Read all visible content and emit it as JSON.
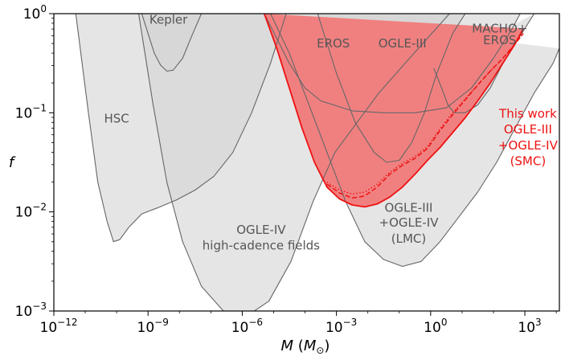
{
  "chart_data": {
    "type": "area",
    "xlabel_main": "M",
    "xlabel_unit": "M",
    "xlabel_sub": "⊙",
    "ylabel": "f",
    "xscale": "log",
    "yscale": "log",
    "xlim": [
      -12,
      4.1
    ],
    "ylim": [
      -3,
      0
    ],
    "x_ticks": [
      {
        "exp": -12,
        "label_base": "10",
        "label_exp": "−12"
      },
      {
        "exp": -9,
        "label_base": "10",
        "label_exp": "−9"
      },
      {
        "exp": -6,
        "label_base": "10",
        "label_exp": "−6"
      },
      {
        "exp": -3,
        "label_base": "10",
        "label_exp": "−3"
      },
      {
        "exp": 0,
        "label_base": "10",
        "label_exp": "0"
      },
      {
        "exp": 3,
        "label_base": "10",
        "label_exp": "3"
      }
    ],
    "y_ticks": [
      {
        "exp": -3,
        "label_base": "10",
        "label_exp": "−3"
      },
      {
        "exp": -2,
        "label_base": "10",
        "label_exp": "−2"
      },
      {
        "exp": -1,
        "label_base": "10",
        "label_exp": "−1"
      },
      {
        "exp": 0,
        "label_base": "10",
        "label_exp": "0"
      }
    ],
    "colors": {
      "gray_fill": "#d3d3d3",
      "gray_line": "#666666",
      "label_gray": "#555555",
      "red_fill": "#f08080",
      "red_line": "#ee1111",
      "red_label": "#ee1111"
    },
    "series": [
      {
        "name": "HSC",
        "style": "gray",
        "points": [
          [
            -11.3,
            0
          ],
          [
            -10.9,
            -1
          ],
          [
            -10.6,
            -1.7
          ],
          [
            -10.3,
            -2.1
          ],
          [
            -10.1,
            -2.3
          ],
          [
            -9.9,
            -2.28
          ],
          [
            -9.6,
            -2.15
          ],
          [
            -9.2,
            -2.02
          ],
          [
            -8.7,
            -1.96
          ],
          [
            -8.1,
            -1.88
          ],
          [
            -7.5,
            -1.78
          ],
          [
            -6.9,
            -1.64
          ],
          [
            -6.3,
            -1.4
          ],
          [
            -5.7,
            -1.0
          ],
          [
            -5.1,
            -0.5
          ],
          [
            -4.6,
            0
          ]
        ]
      },
      {
        "name": "Kepler",
        "style": "gray",
        "points": [
          [
            -9.2,
            0
          ],
          [
            -9.0,
            -0.2
          ],
          [
            -8.8,
            -0.4
          ],
          [
            -8.6,
            -0.52
          ],
          [
            -8.4,
            -0.58
          ],
          [
            -8.2,
            -0.57
          ],
          [
            -7.9,
            -0.45
          ],
          [
            -7.6,
            -0.22
          ],
          [
            -7.3,
            0
          ]
        ]
      },
      {
        "name": "OGLE-IV high-cadence fields",
        "style": "gray",
        "points": [
          [
            -9.3,
            0
          ],
          [
            -8.85,
            -0.9
          ],
          [
            -8.4,
            -1.7
          ],
          [
            -7.9,
            -2.3
          ],
          [
            -7.3,
            -2.75
          ],
          [
            -6.6,
            -3.0
          ],
          [
            -5.85,
            -3.05
          ],
          [
            -5.15,
            -2.9
          ],
          [
            -4.45,
            -2.5
          ],
          [
            -3.75,
            -1.9
          ],
          [
            -3.05,
            -1.4
          ],
          [
            -2.35,
            -1.1
          ],
          [
            -1.65,
            -0.8
          ],
          [
            -0.95,
            -0.55
          ],
          [
            -0.25,
            -0.3
          ],
          [
            0.6,
            0
          ]
        ]
      },
      {
        "name": "EROS",
        "style": "gray",
        "points": [
          [
            -5.3,
            0
          ],
          [
            -4.5,
            -0.5
          ],
          [
            -4.0,
            -0.75
          ],
          [
            -3.5,
            -0.88
          ],
          [
            -2.5,
            -0.98
          ],
          [
            -1.5,
            -1.0
          ],
          [
            -0.5,
            -1.0
          ],
          [
            0.5,
            -0.95
          ],
          [
            1.3,
            -0.75
          ],
          [
            2.0,
            -0.45
          ],
          [
            2.6,
            -0.15
          ],
          [
            2.85,
            0
          ]
        ]
      },
      {
        "name": "OGLE-III",
        "style": "gray",
        "points": [
          [
            -3.6,
            0
          ],
          [
            -3.0,
            -0.6
          ],
          [
            -2.4,
            -1.1
          ],
          [
            -1.8,
            -1.4
          ],
          [
            -1.4,
            -1.5
          ],
          [
            -1.0,
            -1.48
          ],
          [
            -0.6,
            -1.3
          ],
          [
            -0.2,
            -1.0
          ],
          [
            0.2,
            -0.6
          ],
          [
            0.7,
            -0.2
          ],
          [
            1.1,
            0
          ]
        ]
      },
      {
        "name": "MACHO+EROS",
        "style": "gray",
        "points": [
          [
            0.1,
            -0.55
          ],
          [
            0.35,
            -0.75
          ],
          [
            0.55,
            -0.92
          ],
          [
            0.75,
            -1.0
          ],
          [
            1.1,
            -1.0
          ],
          [
            1.5,
            -0.92
          ],
          [
            1.9,
            -0.75
          ],
          [
            2.3,
            -0.5
          ],
          [
            2.9,
            -0.2
          ],
          [
            3.3,
            0
          ]
        ]
      },
      {
        "name": "OGLE-III +OGLE-IV (LMC)",
        "style": "gray",
        "points": [
          [
            -5.1,
            0
          ],
          [
            -4.5,
            -0.4
          ],
          [
            -3.9,
            -0.9
          ],
          [
            -3.3,
            -1.4
          ],
          [
            -2.7,
            -1.9
          ],
          [
            -2.1,
            -2.3
          ],
          [
            -1.5,
            -2.48
          ],
          [
            -0.9,
            -2.55
          ],
          [
            -0.3,
            -2.5
          ],
          [
            0.3,
            -2.3
          ],
          [
            0.9,
            -2.05
          ],
          [
            1.5,
            -1.8
          ],
          [
            2.1,
            -1.5
          ],
          [
            2.7,
            -1.15
          ],
          [
            3.3,
            -0.8
          ],
          [
            3.9,
            -0.5
          ],
          [
            4.1,
            -0.35
          ]
        ]
      },
      {
        "name": "This work OGLE-III +OGLE-IV (SMC)",
        "style": "red",
        "points": [
          [
            -5.3,
            0
          ],
          [
            -4.9,
            -0.35
          ],
          [
            -4.5,
            -0.75
          ],
          [
            -4.1,
            -1.15
          ],
          [
            -3.7,
            -1.5
          ],
          [
            -3.3,
            -1.75
          ],
          [
            -2.9,
            -1.87
          ],
          [
            -2.5,
            -1.93
          ],
          [
            -2.1,
            -1.95
          ],
          [
            -1.7,
            -1.92
          ],
          [
            -1.3,
            -1.85
          ],
          [
            -0.9,
            -1.75
          ],
          [
            -0.5,
            -1.62
          ],
          [
            -0.1,
            -1.48
          ],
          [
            0.3,
            -1.35
          ],
          [
            0.7,
            -1.2
          ],
          [
            1.1,
            -1.05
          ],
          [
            1.5,
            -0.88
          ],
          [
            1.9,
            -0.7
          ],
          [
            2.3,
            -0.5
          ],
          [
            2.7,
            -0.3
          ],
          [
            2.95,
            -0.15
          ]
        ]
      },
      {
        "name": "",
        "style": "red-dash",
        "points": [
          [
            -3.3,
            -1.72
          ],
          [
            -2.9,
            -1.81
          ],
          [
            -2.5,
            -1.86
          ],
          [
            -2.1,
            -1.84
          ],
          [
            -1.7,
            -1.75
          ],
          [
            -1.3,
            -1.62
          ],
          [
            -0.9,
            -1.53
          ],
          [
            -0.5,
            -1.46
          ],
          [
            -0.1,
            -1.36
          ],
          [
            0.3,
            -1.18
          ],
          [
            0.7,
            -1.02
          ],
          [
            1.1,
            -0.87
          ],
          [
            1.5,
            -0.72
          ],
          [
            1.9,
            -0.58
          ],
          [
            2.3,
            -0.45
          ],
          [
            2.7,
            -0.3
          ],
          [
            2.95,
            -0.2
          ]
        ]
      },
      {
        "name": "",
        "style": "red-dot",
        "points": [
          [
            -3.3,
            -1.7
          ],
          [
            -2.9,
            -1.78
          ],
          [
            -2.5,
            -1.82
          ],
          [
            -2.1,
            -1.8
          ],
          [
            -1.7,
            -1.72
          ],
          [
            -1.3,
            -1.6
          ],
          [
            -0.9,
            -1.51
          ],
          [
            -0.5,
            -1.44
          ],
          [
            -0.1,
            -1.34
          ],
          [
            0.3,
            -1.16
          ],
          [
            0.7,
            -1.0
          ],
          [
            1.1,
            -0.86
          ],
          [
            1.5,
            -0.72
          ],
          [
            1.9,
            -0.58
          ],
          [
            2.3,
            -0.45
          ],
          [
            2.7,
            -0.3
          ],
          [
            2.95,
            -0.2
          ]
        ]
      }
    ],
    "annotations": [
      {
        "text": "Kepler",
        "x": -8.35,
        "y": -0.1,
        "color": "gray"
      },
      {
        "text": "HSC",
        "x": -10.0,
        "y": -1.1,
        "color": "gray"
      },
      {
        "text": "EROS",
        "x": -3.1,
        "y": -0.34,
        "color": "gray"
      },
      {
        "text": "OGLE-III",
        "x": -0.9,
        "y": -0.34,
        "color": "gray"
      },
      {
        "text": "MACHO+",
        "x": 2.2,
        "y": -0.19,
        "color": "gray"
      },
      {
        "text": "EROS",
        "x": 2.2,
        "y": -0.31,
        "color": "gray"
      },
      {
        "text": "OGLE-IV",
        "x": -5.4,
        "y": -2.22,
        "color": "gray"
      },
      {
        "text": "high-cadence fields",
        "x": -5.4,
        "y": -2.38,
        "color": "gray"
      },
      {
        "text": "OGLE-III",
        "x": -0.7,
        "y": -2.0,
        "color": "gray"
      },
      {
        "text": "+OGLE-IV",
        "x": -0.7,
        "y": -2.15,
        "color": "gray"
      },
      {
        "text": "(LMC)",
        "x": -0.7,
        "y": -2.31,
        "color": "gray"
      },
      {
        "text": "This work",
        "x": 3.1,
        "y": -1.05,
        "color": "red"
      },
      {
        "text": "OGLE-III",
        "x": 3.1,
        "y": -1.21,
        "color": "red"
      },
      {
        "text": "+OGLE-IV",
        "x": 3.1,
        "y": -1.37,
        "color": "red"
      },
      {
        "text": "(SMC)",
        "x": 3.1,
        "y": -1.53,
        "color": "red"
      }
    ]
  }
}
